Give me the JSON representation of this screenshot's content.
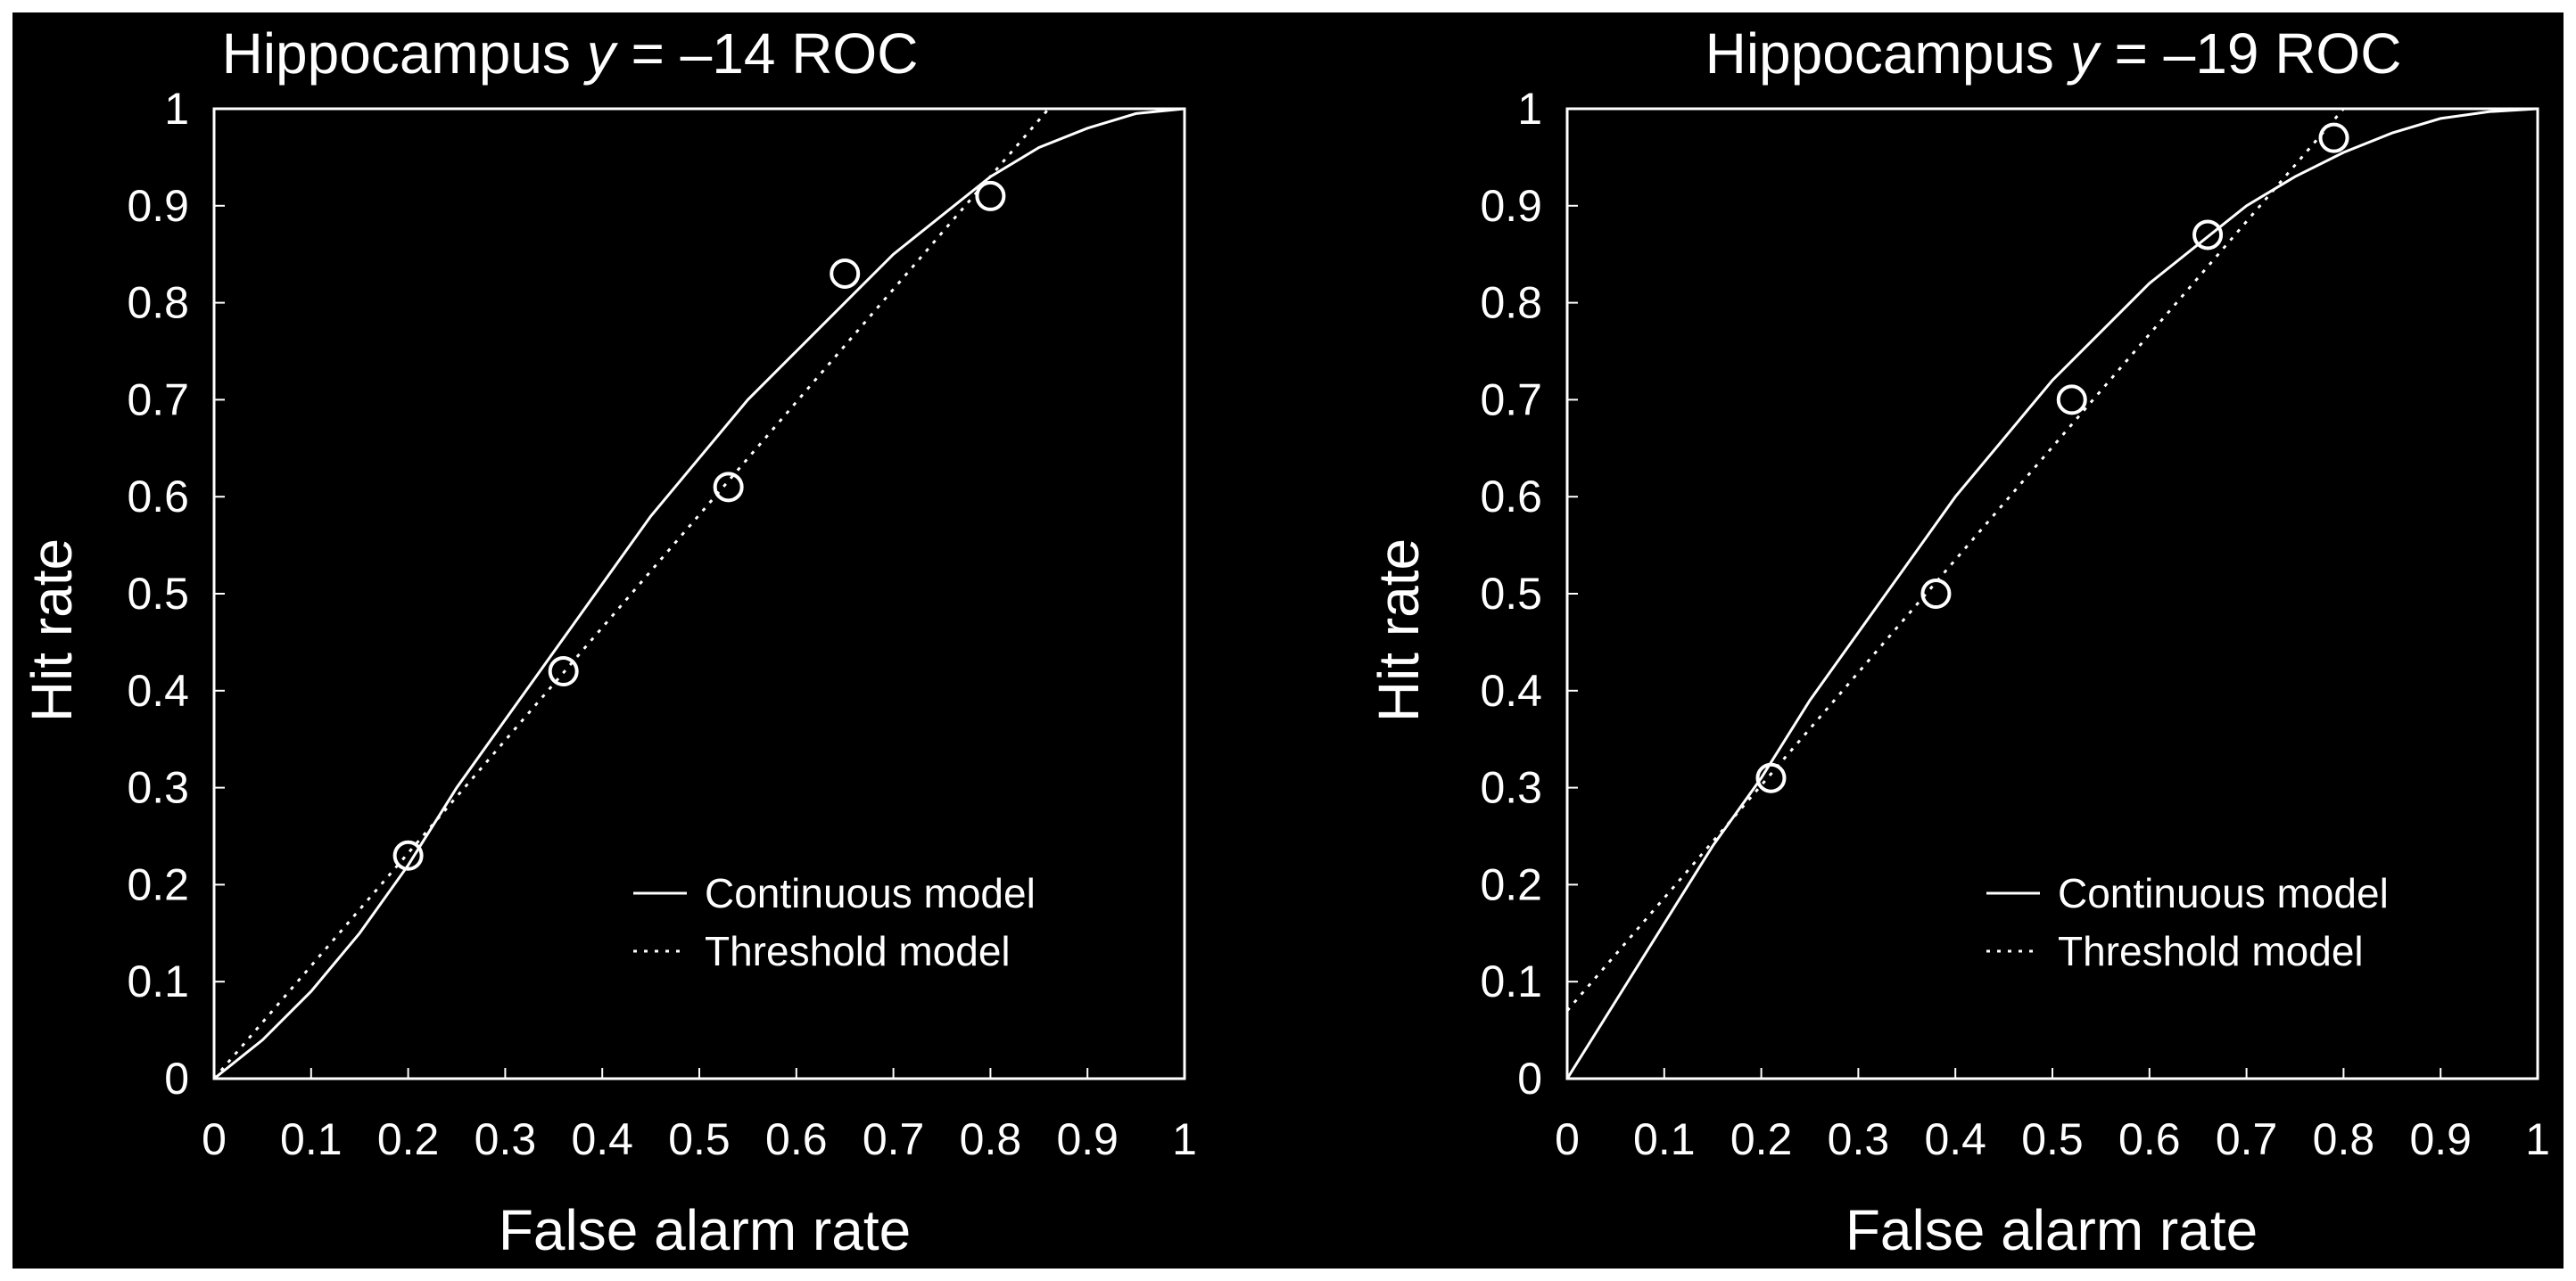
{
  "figure": {
    "background": "#000000",
    "foreground": "#ffffff",
    "border": "#ffffff"
  },
  "chart_data": [
    {
      "type": "scatter",
      "title_main": "Hippocampus ",
      "title_italic": "y",
      "title_rest": " = –14 ROC",
      "xlabel": "False alarm rate",
      "ylabel": "Hit rate",
      "xlim": [
        0,
        1
      ],
      "ylim": [
        0,
        1
      ],
      "xticks": [
        "0",
        "0.1",
        "0.2",
        "0.3",
        "0.4",
        "0.5",
        "0.6",
        "0.7",
        "0.8",
        "0.9",
        "1"
      ],
      "yticks": [
        "0",
        "0.1",
        "0.2",
        "0.3",
        "0.4",
        "0.5",
        "0.6",
        "0.7",
        "0.8",
        "0.9",
        "1"
      ],
      "grid": false,
      "legend_position": "bottom-right",
      "points": [
        {
          "x": 0.2,
          "y": 0.23
        },
        {
          "x": 0.36,
          "y": 0.42
        },
        {
          "x": 0.53,
          "y": 0.61
        },
        {
          "x": 0.65,
          "y": 0.83
        },
        {
          "x": 0.8,
          "y": 0.91
        }
      ],
      "series": [
        {
          "name": "Continuous model",
          "style": "solid",
          "x": [
            0,
            0.05,
            0.1,
            0.15,
            0.2,
            0.25,
            0.3,
            0.35,
            0.4,
            0.45,
            0.5,
            0.55,
            0.6,
            0.65,
            0.7,
            0.75,
            0.8,
            0.85,
            0.9,
            0.95,
            1
          ],
          "y": [
            0,
            0.04,
            0.09,
            0.15,
            0.22,
            0.3,
            0.37,
            0.44,
            0.51,
            0.58,
            0.64,
            0.7,
            0.75,
            0.8,
            0.85,
            0.89,
            0.93,
            0.96,
            0.98,
            0.995,
            1
          ]
        },
        {
          "name": "Threshold model",
          "style": "dotted",
          "x": [
            0,
            0.86
          ],
          "y": [
            0,
            1
          ]
        }
      ]
    },
    {
      "type": "scatter",
      "title_main": "Hippocampus ",
      "title_italic": "y",
      "title_rest": " = –19 ROC",
      "xlabel": "False alarm rate",
      "ylabel": "Hit rate",
      "xlim": [
        0,
        1
      ],
      "ylim": [
        0,
        1
      ],
      "xticks": [
        "0",
        "0.1",
        "0.2",
        "0.3",
        "0.4",
        "0.5",
        "0.6",
        "0.7",
        "0.8",
        "0.9",
        "1"
      ],
      "yticks": [
        "0",
        "0.1",
        "0.2",
        "0.3",
        "0.4",
        "0.5",
        "0.6",
        "0.7",
        "0.8",
        "0.9",
        "1"
      ],
      "grid": false,
      "legend_position": "bottom-right",
      "points": [
        {
          "x": 0.21,
          "y": 0.31
        },
        {
          "x": 0.38,
          "y": 0.5
        },
        {
          "x": 0.52,
          "y": 0.7
        },
        {
          "x": 0.66,
          "y": 0.87
        },
        {
          "x": 0.79,
          "y": 0.97
        }
      ],
      "series": [
        {
          "name": "Continuous model",
          "style": "solid",
          "x": [
            0,
            0.05,
            0.1,
            0.15,
            0.2,
            0.25,
            0.3,
            0.35,
            0.4,
            0.45,
            0.5,
            0.55,
            0.6,
            0.65,
            0.7,
            0.75,
            0.8,
            0.85,
            0.9,
            0.95,
            1
          ],
          "y": [
            0,
            0.08,
            0.16,
            0.24,
            0.31,
            0.39,
            0.46,
            0.53,
            0.6,
            0.66,
            0.72,
            0.77,
            0.82,
            0.86,
            0.9,
            0.93,
            0.955,
            0.975,
            0.99,
            0.997,
            1
          ]
        },
        {
          "name": "Threshold model",
          "style": "dotted",
          "x": [
            0,
            0.8
          ],
          "y": [
            0.07,
            1
          ]
        }
      ]
    }
  ]
}
